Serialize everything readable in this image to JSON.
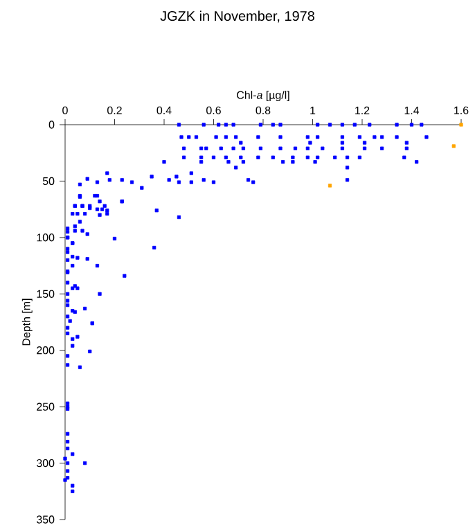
{
  "chart_data": {
    "type": "scatter",
    "title": "JGZK in November, 1978",
    "xlabel": "Chl-*a* [µg/l]",
    "ylabel": "Depth [m]",
    "xlim": [
      0,
      1.6
    ],
    "xticks": [
      0,
      0.2,
      0.4,
      0.6,
      0.8,
      1,
      1.2,
      1.4,
      1.6
    ],
    "ylim": [
      350,
      0
    ],
    "yticks": [
      0,
      50,
      100,
      150,
      200,
      250,
      300,
      350
    ],
    "marker": "square",
    "grid": false,
    "series": [
      {
        "color": "#0000ff",
        "x": [
          0.46,
          0.56,
          0.62,
          0.65,
          0.68,
          0.79,
          0.84,
          0.87,
          1.02,
          1.07,
          1.12,
          1.17,
          1.23,
          1.34,
          1.4,
          1.44,
          0.47,
          0.5,
          0.53,
          0.61,
          0.65,
          0.69,
          0.78,
          0.87,
          0.98,
          1.02,
          1.12,
          1.19,
          1.25,
          1.28,
          1.34,
          1.46,
          0.71,
          0.99,
          1.12,
          1.21,
          1.38,
          0.48,
          0.55,
          0.57,
          0.63,
          0.68,
          0.72,
          0.79,
          0.87,
          0.93,
          0.98,
          1.04,
          1.12,
          1.21,
          1.28,
          1.38,
          0.48,
          0.55,
          0.6,
          0.65,
          0.71,
          0.78,
          0.84,
          0.92,
          0.98,
          1.02,
          1.09,
          1.14,
          1.19,
          1.37,
          0.4,
          0.55,
          0.66,
          0.72,
          0.88,
          0.92,
          1.01,
          1.42,
          0.69,
          1.14,
          0.17,
          0.35,
          0.45,
          0.51,
          0.18,
          0.23,
          0.27,
          0.31,
          0.42,
          0.46,
          0.51,
          0.56,
          0.6,
          0.74,
          0.76,
          1.14,
          0.06,
          0.09,
          0.13,
          0.06,
          0.13,
          0.23,
          0.04,
          0.07,
          0.1,
          0.14,
          0.16,
          0.06,
          0.12,
          0.04,
          0.07,
          0.1,
          0.13,
          0.15,
          0.17,
          0.17,
          0.03,
          0.05,
          0.08,
          0.23,
          0.37,
          0.46,
          0.14,
          0.06,
          0.04,
          0.01,
          0.04,
          0.07,
          0.09,
          0.01,
          0.2,
          0.03,
          0.36,
          0.01,
          0.03,
          0.05,
          0.09,
          0.13,
          0.01,
          0.24,
          0.04,
          0.05,
          0.14,
          0.01,
          0.08,
          0.04,
          0.11,
          0.01,
          0.02,
          0.11,
          0.05,
          0.03,
          0.03,
          0.1,
          0.01,
          0.01,
          0.06,
          0.01,
          0.01,
          0.01,
          0.01,
          0.01,
          0.01,
          0.03,
          0.0,
          0.01,
          0.08,
          0.01,
          0.01,
          0.0,
          0.03,
          0.03,
          0.01,
          0.01,
          0.01,
          0.01,
          0.01,
          0.01,
          0.01,
          0.01,
          0.01,
          0.01,
          0.03,
          0.03,
          0.03,
          0.03
        ],
        "values": [
          0,
          0,
          0,
          0,
          0,
          0,
          0,
          0,
          0,
          0,
          0,
          0,
          0,
          0,
          0,
          0,
          11,
          11,
          11,
          11,
          11,
          11,
          11,
          11,
          11,
          11,
          11,
          11,
          11,
          11,
          11,
          11,
          16,
          16,
          16,
          16,
          16,
          21,
          21,
          21,
          21,
          21,
          21,
          21,
          21,
          21,
          21,
          21,
          21,
          21,
          21,
          21,
          29,
          29,
          29,
          29,
          29,
          29,
          29,
          29,
          29,
          29,
          29,
          29,
          29,
          29,
          33,
          33,
          33,
          33,
          33,
          33,
          33,
          33,
          38,
          38,
          43,
          46,
          46,
          43,
          49,
          49,
          51,
          56,
          49,
          51,
          51,
          49,
          51,
          49,
          51,
          49,
          53,
          48,
          51,
          63,
          63,
          68,
          72,
          72,
          72,
          68,
          72,
          64,
          63,
          72,
          72,
          74,
          75,
          75,
          76,
          79,
          79,
          79,
          79,
          68,
          76,
          82,
          80,
          86,
          90,
          92,
          94,
          94,
          97,
          100,
          101,
          105,
          109,
          113,
          117,
          118,
          119,
          125,
          131,
          134,
          143,
          145,
          150,
          156,
          163,
          166,
          176,
          180,
          174,
          176,
          188,
          190,
          196,
          201,
          205,
          213,
          215,
          247,
          250,
          252,
          274,
          281,
          287,
          292,
          296,
          300,
          300,
          307,
          313,
          315,
          320,
          325,
          95,
          100,
          110,
          120,
          130,
          140,
          150,
          160,
          170,
          185,
          105,
          125,
          145,
          165
        ]
      },
      {
        "color": "#ffa500",
        "x": [
          1.6,
          1.57,
          1.07
        ],
        "values": [
          0,
          19,
          54
        ]
      }
    ]
  }
}
